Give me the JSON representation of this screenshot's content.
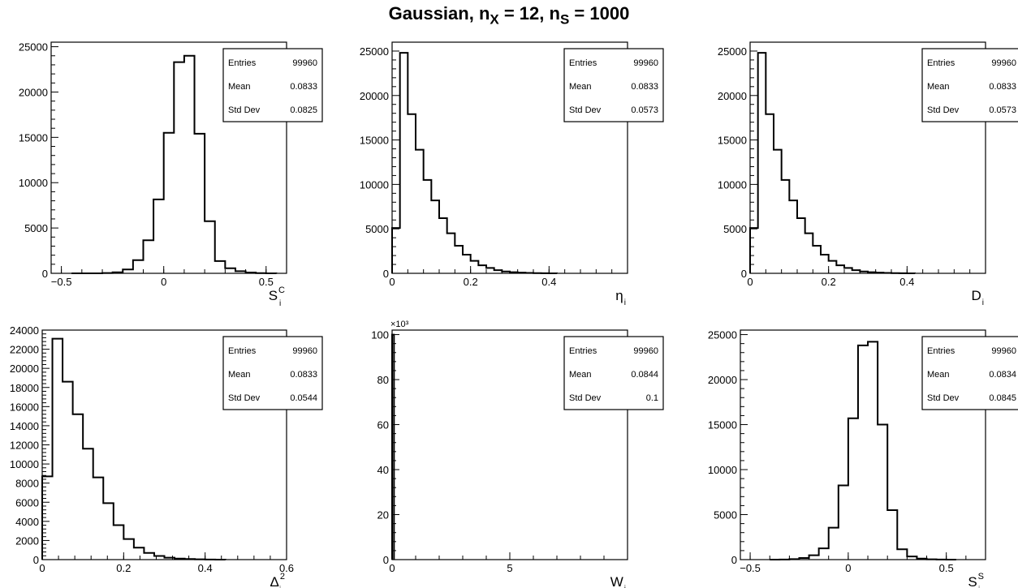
{
  "title": {
    "prefix": "Gaussian, n",
    "sub1": "X",
    "mid": " = 12, n",
    "sub2": "S",
    "suffix": " = 1000"
  },
  "stats_labels": [
    "Entries",
    "Mean",
    "Std Dev"
  ],
  "chart_data": [
    {
      "type": "bar",
      "xlabel": {
        "base": "S",
        "sub": "i",
        "sup": "C"
      },
      "xlim": [
        -0.55,
        0.6
      ],
      "ylim": [
        0,
        25500
      ],
      "xticks": [
        -0.5,
        0,
        0.5
      ],
      "xtick_labels": [
        "−0.5",
        "0",
        "0.5"
      ],
      "yticks": [
        0,
        5000,
        10000,
        15000,
        20000,
        25000
      ],
      "ytick_labels": [
        "0",
        "5000",
        "10000",
        "15000",
        "20000",
        "25000"
      ],
      "bin_edges": [
        -0.45,
        -0.4,
        -0.35,
        -0.3,
        -0.25,
        -0.2,
        -0.15,
        -0.1,
        -0.05,
        0.0,
        0.05,
        0.1,
        0.15,
        0.2,
        0.25,
        0.3,
        0.35,
        0.4,
        0.45,
        0.5,
        0.55
      ],
      "values": [
        0,
        0,
        5,
        30,
        110,
        420,
        1450,
        3650,
        8150,
        15500,
        23300,
        24000,
        15400,
        5750,
        1350,
        560,
        230,
        90,
        20,
        5
      ],
      "stats": {
        "entries": "99960",
        "mean": "0.0833",
        "std_dev": "0.0825"
      }
    },
    {
      "type": "bar",
      "xlabel": {
        "base": "η",
        "sub": "i",
        "sup": ""
      },
      "xlim": [
        0,
        0.6
      ],
      "ylim": [
        0,
        26000
      ],
      "xticks": [
        0,
        0.2,
        0.4
      ],
      "xtick_labels": [
        "0",
        "0.2",
        "0.4"
      ],
      "yticks": [
        0,
        5000,
        10000,
        15000,
        20000,
        25000
      ],
      "ytick_labels": [
        "0",
        "5000",
        "10000",
        "15000",
        "20000",
        "25000"
      ],
      "bin_edges": [
        0.0,
        0.02,
        0.04,
        0.06,
        0.08,
        0.1,
        0.12,
        0.14,
        0.16,
        0.18,
        0.2,
        0.22,
        0.24,
        0.26,
        0.28,
        0.3,
        0.32,
        0.34,
        0.36,
        0.38,
        0.4,
        0.42
      ],
      "values": [
        5100,
        24800,
        17900,
        13900,
        10500,
        8200,
        6200,
        4500,
        3100,
        2100,
        1400,
        900,
        600,
        350,
        200,
        130,
        80,
        45,
        25,
        15,
        5
      ],
      "stats": {
        "entries": "99960",
        "mean": "0.0833",
        "std_dev": "0.0573"
      }
    },
    {
      "type": "bar",
      "xlabel": {
        "base": "D",
        "sub": "i",
        "sup": ""
      },
      "xlim": [
        0,
        0.6
      ],
      "ylim": [
        0,
        26000
      ],
      "xticks": [
        0,
        0.2,
        0.4
      ],
      "xtick_labels": [
        "0",
        "0.2",
        "0.4"
      ],
      "yticks": [
        0,
        5000,
        10000,
        15000,
        20000,
        25000
      ],
      "ytick_labels": [
        "0",
        "5000",
        "10000",
        "15000",
        "20000",
        "25000"
      ],
      "bin_edges": [
        0.0,
        0.02,
        0.04,
        0.06,
        0.08,
        0.1,
        0.12,
        0.14,
        0.16,
        0.18,
        0.2,
        0.22,
        0.24,
        0.26,
        0.28,
        0.3,
        0.32,
        0.34,
        0.36,
        0.38,
        0.4,
        0.42
      ],
      "values": [
        5100,
        24800,
        17900,
        13900,
        10500,
        8200,
        6200,
        4500,
        3100,
        2100,
        1400,
        900,
        600,
        350,
        200,
        130,
        80,
        45,
        25,
        15,
        5
      ],
      "stats": {
        "entries": "99960",
        "mean": "0.0833",
        "std_dev": "0.0573"
      }
    },
    {
      "type": "bar",
      "xlabel": {
        "base": "Δ",
        "sub": "i",
        "sup": "2"
      },
      "xlim": [
        0,
        0.6
      ],
      "ylim": [
        0,
        24000
      ],
      "xticks": [
        0,
        0.2,
        0.4,
        0.6
      ],
      "xtick_labels": [
        "0",
        "0.2",
        "0.4",
        "0.6"
      ],
      "yticks": [
        0,
        2000,
        4000,
        6000,
        8000,
        10000,
        12000,
        14000,
        16000,
        18000,
        20000,
        22000,
        24000
      ],
      "ytick_labels": [
        "0",
        "2000",
        "4000",
        "6000",
        "8000",
        "10000",
        "12000",
        "14000",
        "16000",
        "18000",
        "20000",
        "22000",
        "24000"
      ],
      "bin_edges": [
        0.0,
        0.025,
        0.05,
        0.075,
        0.1,
        0.125,
        0.15,
        0.175,
        0.2,
        0.225,
        0.25,
        0.275,
        0.3,
        0.325,
        0.35,
        0.375,
        0.4,
        0.425,
        0.45
      ],
      "values": [
        8700,
        23100,
        18600,
        15200,
        11600,
        8600,
        5900,
        3600,
        2150,
        1250,
        700,
        380,
        200,
        110,
        60,
        30,
        15,
        5
      ],
      "stats": {
        "entries": "99960",
        "mean": "0.0833",
        "std_dev": "0.0544"
      }
    },
    {
      "type": "bar",
      "xlabel": {
        "base": "W",
        "sub": "i",
        "sup": ""
      },
      "xlim": [
        0,
        10
      ],
      "ylim": [
        0,
        102
      ],
      "y_exponent_label": "×10³",
      "xticks": [
        0,
        5
      ],
      "xtick_labels": [
        "0",
        "5"
      ],
      "yticks": [
        0,
        20,
        40,
        60,
        80,
        100
      ],
      "ytick_labels": [
        "0",
        "20",
        "40",
        "60",
        "80",
        "100"
      ],
      "bin_edges": [
        0.0,
        0.08
      ],
      "values": [
        99.96
      ],
      "stats": {
        "entries": "99960",
        "mean": "0.0844",
        "std_dev": "0.1"
      }
    },
    {
      "type": "bar",
      "xlabel": {
        "base": "S",
        "sub": "i",
        "sup": "S"
      },
      "xlim": [
        -0.55,
        0.7
      ],
      "ylim": [
        0,
        25500
      ],
      "xticks": [
        -0.5,
        0,
        0.5
      ],
      "xtick_labels": [
        "−0.5",
        "0",
        "0.5"
      ],
      "yticks": [
        0,
        5000,
        10000,
        15000,
        20000,
        25000
      ],
      "ytick_labels": [
        "0",
        "5000",
        "10000",
        "15000",
        "20000",
        "25000"
      ],
      "bin_edges": [
        -0.4,
        -0.35,
        -0.3,
        -0.25,
        -0.2,
        -0.15,
        -0.1,
        -0.05,
        0.0,
        0.05,
        0.1,
        0.15,
        0.2,
        0.25,
        0.3,
        0.35,
        0.4,
        0.45,
        0.5,
        0.55
      ],
      "values": [
        0,
        10,
        60,
        180,
        480,
        1250,
        3550,
        8250,
        15700,
        23800,
        24200,
        15000,
        5500,
        1150,
        350,
        110,
        30,
        10,
        0
      ],
      "stats": {
        "entries": "99960",
        "mean": "0.0834",
        "std_dev": "0.0845"
      }
    }
  ]
}
